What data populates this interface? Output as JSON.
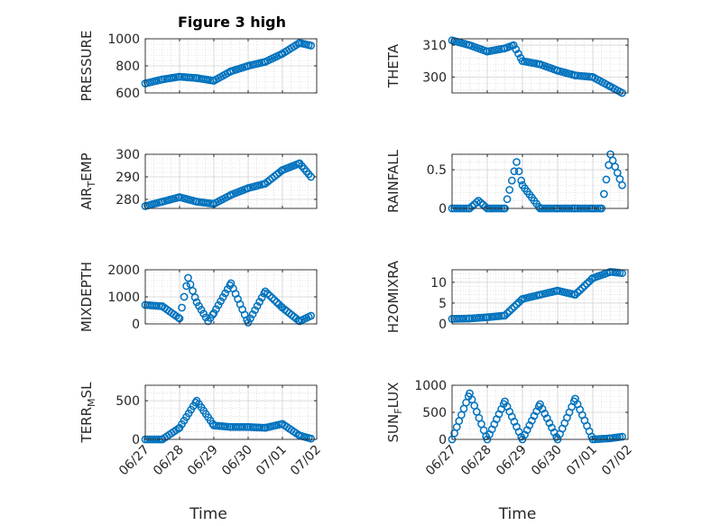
{
  "figure_title": "Figure 3 high",
  "colors": {
    "marker": "#0072BD",
    "axis": "#262626",
    "grid": "#d0d0d0"
  },
  "chart_data": [
    {
      "type": "scatter",
      "title": "Figure 3 high",
      "ylabel": "PRESSURE",
      "xlabel": "",
      "x_type": "date",
      "xlim": [
        "2020-06-27",
        "2020-07-02"
      ],
      "ylim": [
        600,
        1000
      ],
      "yticks": [
        600,
        800,
        1000
      ],
      "xticks": [
        "06/27",
        "06/28",
        "06/29",
        "06/30",
        "07/01",
        "07/02"
      ],
      "grid": true,
      "series": [
        {
          "x": [
            "2020-06-27T00:00",
            "2020-06-27T12:00",
            "2020-06-28T00:00",
            "2020-06-28T12:00",
            "2020-06-29T00:00",
            "2020-06-29T12:00",
            "2020-06-30T00:00",
            "2020-06-30T12:00",
            "2020-07-01T00:00",
            "2020-07-01T12:00",
            "2020-07-01T20:00"
          ],
          "values": [
            670,
            700,
            720,
            710,
            690,
            760,
            800,
            830,
            890,
            970,
            950
          ]
        }
      ]
    },
    {
      "type": "scatter",
      "ylabel": "THETA",
      "xlabel": "",
      "x_type": "date",
      "xlim": [
        "2020-06-27",
        "2020-07-02"
      ],
      "ylim": [
        295,
        312
      ],
      "yticks": [
        300,
        310
      ],
      "xticks": [
        "06/27",
        "06/28",
        "06/29",
        "06/30",
        "07/01",
        "07/02"
      ],
      "grid": true,
      "series": [
        {
          "x": [
            "2020-06-27T00:00",
            "2020-06-27T12:00",
            "2020-06-28T00:00",
            "2020-06-28T12:00",
            "2020-06-28T18:00",
            "2020-06-29T00:00",
            "2020-06-29T12:00",
            "2020-06-30T00:00",
            "2020-06-30T12:00",
            "2020-07-01T00:00",
            "2020-07-01T12:00",
            "2020-07-01T20:00"
          ],
          "values": [
            311.5,
            310,
            308,
            309,
            310,
            305,
            304,
            302,
            300.5,
            300,
            297,
            295
          ]
        }
      ]
    },
    {
      "type": "scatter",
      "ylabel": "AIR_TEMP",
      "xlabel": "",
      "x_type": "date",
      "xlim": [
        "2020-06-27",
        "2020-07-02"
      ],
      "ylim": [
        276,
        300
      ],
      "yticks": [
        280,
        290,
        300
      ],
      "xticks": [
        "06/27",
        "06/28",
        "06/29",
        "06/30",
        "07/01",
        "07/02"
      ],
      "grid": true,
      "series": [
        {
          "x": [
            "2020-06-27T00:00",
            "2020-06-27T12:00",
            "2020-06-28T00:00",
            "2020-06-28T12:00",
            "2020-06-29T00:00",
            "2020-06-29T12:00",
            "2020-06-30T00:00",
            "2020-06-30T12:00",
            "2020-07-01T00:00",
            "2020-07-01T12:00",
            "2020-07-01T20:00"
          ],
          "values": [
            277,
            279,
            281,
            279,
            278,
            282,
            285,
            287,
            293,
            296,
            290
          ]
        }
      ]
    },
    {
      "type": "scatter",
      "ylabel": "RAINFALL",
      "xlabel": "",
      "x_type": "date",
      "xlim": [
        "2020-06-27",
        "2020-07-02"
      ],
      "ylim": [
        0,
        0.7
      ],
      "yticks": [
        0,
        0.5
      ],
      "xticks": [
        "06/27",
        "06/28",
        "06/29",
        "06/30",
        "07/01",
        "07/02"
      ],
      "grid": true,
      "series": [
        {
          "x": [
            "2020-06-27T00:00",
            "2020-06-27T12:00",
            "2020-06-27T18:00",
            "2020-06-28T00:00",
            "2020-06-28T12:00",
            "2020-06-28T20:00",
            "2020-06-29T00:00",
            "2020-06-29T12:00",
            "2020-06-30T00:00",
            "2020-06-30T12:00",
            "2020-07-01T00:00",
            "2020-07-01T06:00",
            "2020-07-01T12:00",
            "2020-07-01T20:00"
          ],
          "values": [
            0,
            0,
            0.1,
            0,
            0,
            0.6,
            0.3,
            0,
            0,
            0,
            0,
            0,
            0.7,
            0.3
          ]
        }
      ]
    },
    {
      "type": "scatter",
      "ylabel": "MIXDEPTH",
      "xlabel": "",
      "x_type": "date",
      "xlim": [
        "2020-06-27",
        "2020-07-02"
      ],
      "ylim": [
        0,
        2000
      ],
      "yticks": [
        0,
        1000,
        2000
      ],
      "xticks": [
        "06/27",
        "06/28",
        "06/29",
        "06/30",
        "07/01",
        "07/02"
      ],
      "grid": true,
      "series": [
        {
          "x": [
            "2020-06-27T00:00",
            "2020-06-27T12:00",
            "2020-06-28T00:00",
            "2020-06-28T06:00",
            "2020-06-28T12:00",
            "2020-06-28T20:00",
            "2020-06-29T00:00",
            "2020-06-29T12:00",
            "2020-06-30T00:00",
            "2020-06-30T12:00",
            "2020-07-01T00:00",
            "2020-07-01T12:00",
            "2020-07-01T20:00"
          ],
          "values": [
            700,
            650,
            200,
            1700,
            800,
            100,
            400,
            1500,
            50,
            1200,
            600,
            100,
            300
          ]
        }
      ]
    },
    {
      "type": "scatter",
      "ylabel": "H2OMIXRA",
      "xlabel": "",
      "x_type": "date",
      "xlim": [
        "2020-06-27",
        "2020-07-02"
      ],
      "ylim": [
        0,
        13
      ],
      "yticks": [
        0,
        5,
        10
      ],
      "xticks": [
        "06/27",
        "06/28",
        "06/29",
        "06/30",
        "07/01",
        "07/02"
      ],
      "grid": true,
      "series": [
        {
          "x": [
            "2020-06-27T00:00",
            "2020-06-27T12:00",
            "2020-06-28T00:00",
            "2020-06-28T12:00",
            "2020-06-29T00:00",
            "2020-06-29T12:00",
            "2020-06-30T00:00",
            "2020-06-30T12:00",
            "2020-07-01T00:00",
            "2020-07-01T12:00",
            "2020-07-01T20:00"
          ],
          "values": [
            1.2,
            1.3,
            1.6,
            2,
            6,
            7,
            8,
            7,
            11,
            12.5,
            12.2
          ]
        }
      ]
    },
    {
      "type": "scatter",
      "ylabel": "TERR_MSL",
      "xlabel": "Time",
      "x_type": "date",
      "xlim": [
        "2020-06-27",
        "2020-07-02"
      ],
      "ylim": [
        0,
        700
      ],
      "yticks": [
        0,
        500
      ],
      "xticks": [
        "06/27",
        "06/28",
        "06/29",
        "06/30",
        "07/01",
        "07/02"
      ],
      "grid": true,
      "series": [
        {
          "x": [
            "2020-06-27T00:00",
            "2020-06-27T12:00",
            "2020-06-28T00:00",
            "2020-06-28T12:00",
            "2020-06-29T00:00",
            "2020-06-29T12:00",
            "2020-06-30T00:00",
            "2020-06-30T12:00",
            "2020-07-01T00:00",
            "2020-07-01T12:00",
            "2020-07-01T20:00"
          ],
          "values": [
            0,
            0,
            150,
            500,
            180,
            160,
            160,
            150,
            200,
            50,
            10
          ]
        }
      ]
    },
    {
      "type": "scatter",
      "ylabel": "SUN_FLUX",
      "xlabel": "Time",
      "x_type": "date",
      "xlim": [
        "2020-06-27",
        "2020-07-02"
      ],
      "ylim": [
        0,
        1000
      ],
      "yticks": [
        0,
        500,
        1000
      ],
      "xticks": [
        "06/27",
        "06/28",
        "06/29",
        "06/30",
        "07/01",
        "07/02"
      ],
      "grid": true,
      "series": [
        {
          "x": [
            "2020-06-27T00:00",
            "2020-06-27T12:00",
            "2020-06-28T00:00",
            "2020-06-28T12:00",
            "2020-06-29T00:00",
            "2020-06-29T12:00",
            "2020-06-30T00:00",
            "2020-06-30T12:00",
            "2020-07-01T00:00",
            "2020-07-01T12:00",
            "2020-07-01T20:00"
          ],
          "values": [
            0,
            850,
            0,
            700,
            0,
            650,
            0,
            750,
            0,
            20,
            50
          ]
        }
      ]
    }
  ]
}
